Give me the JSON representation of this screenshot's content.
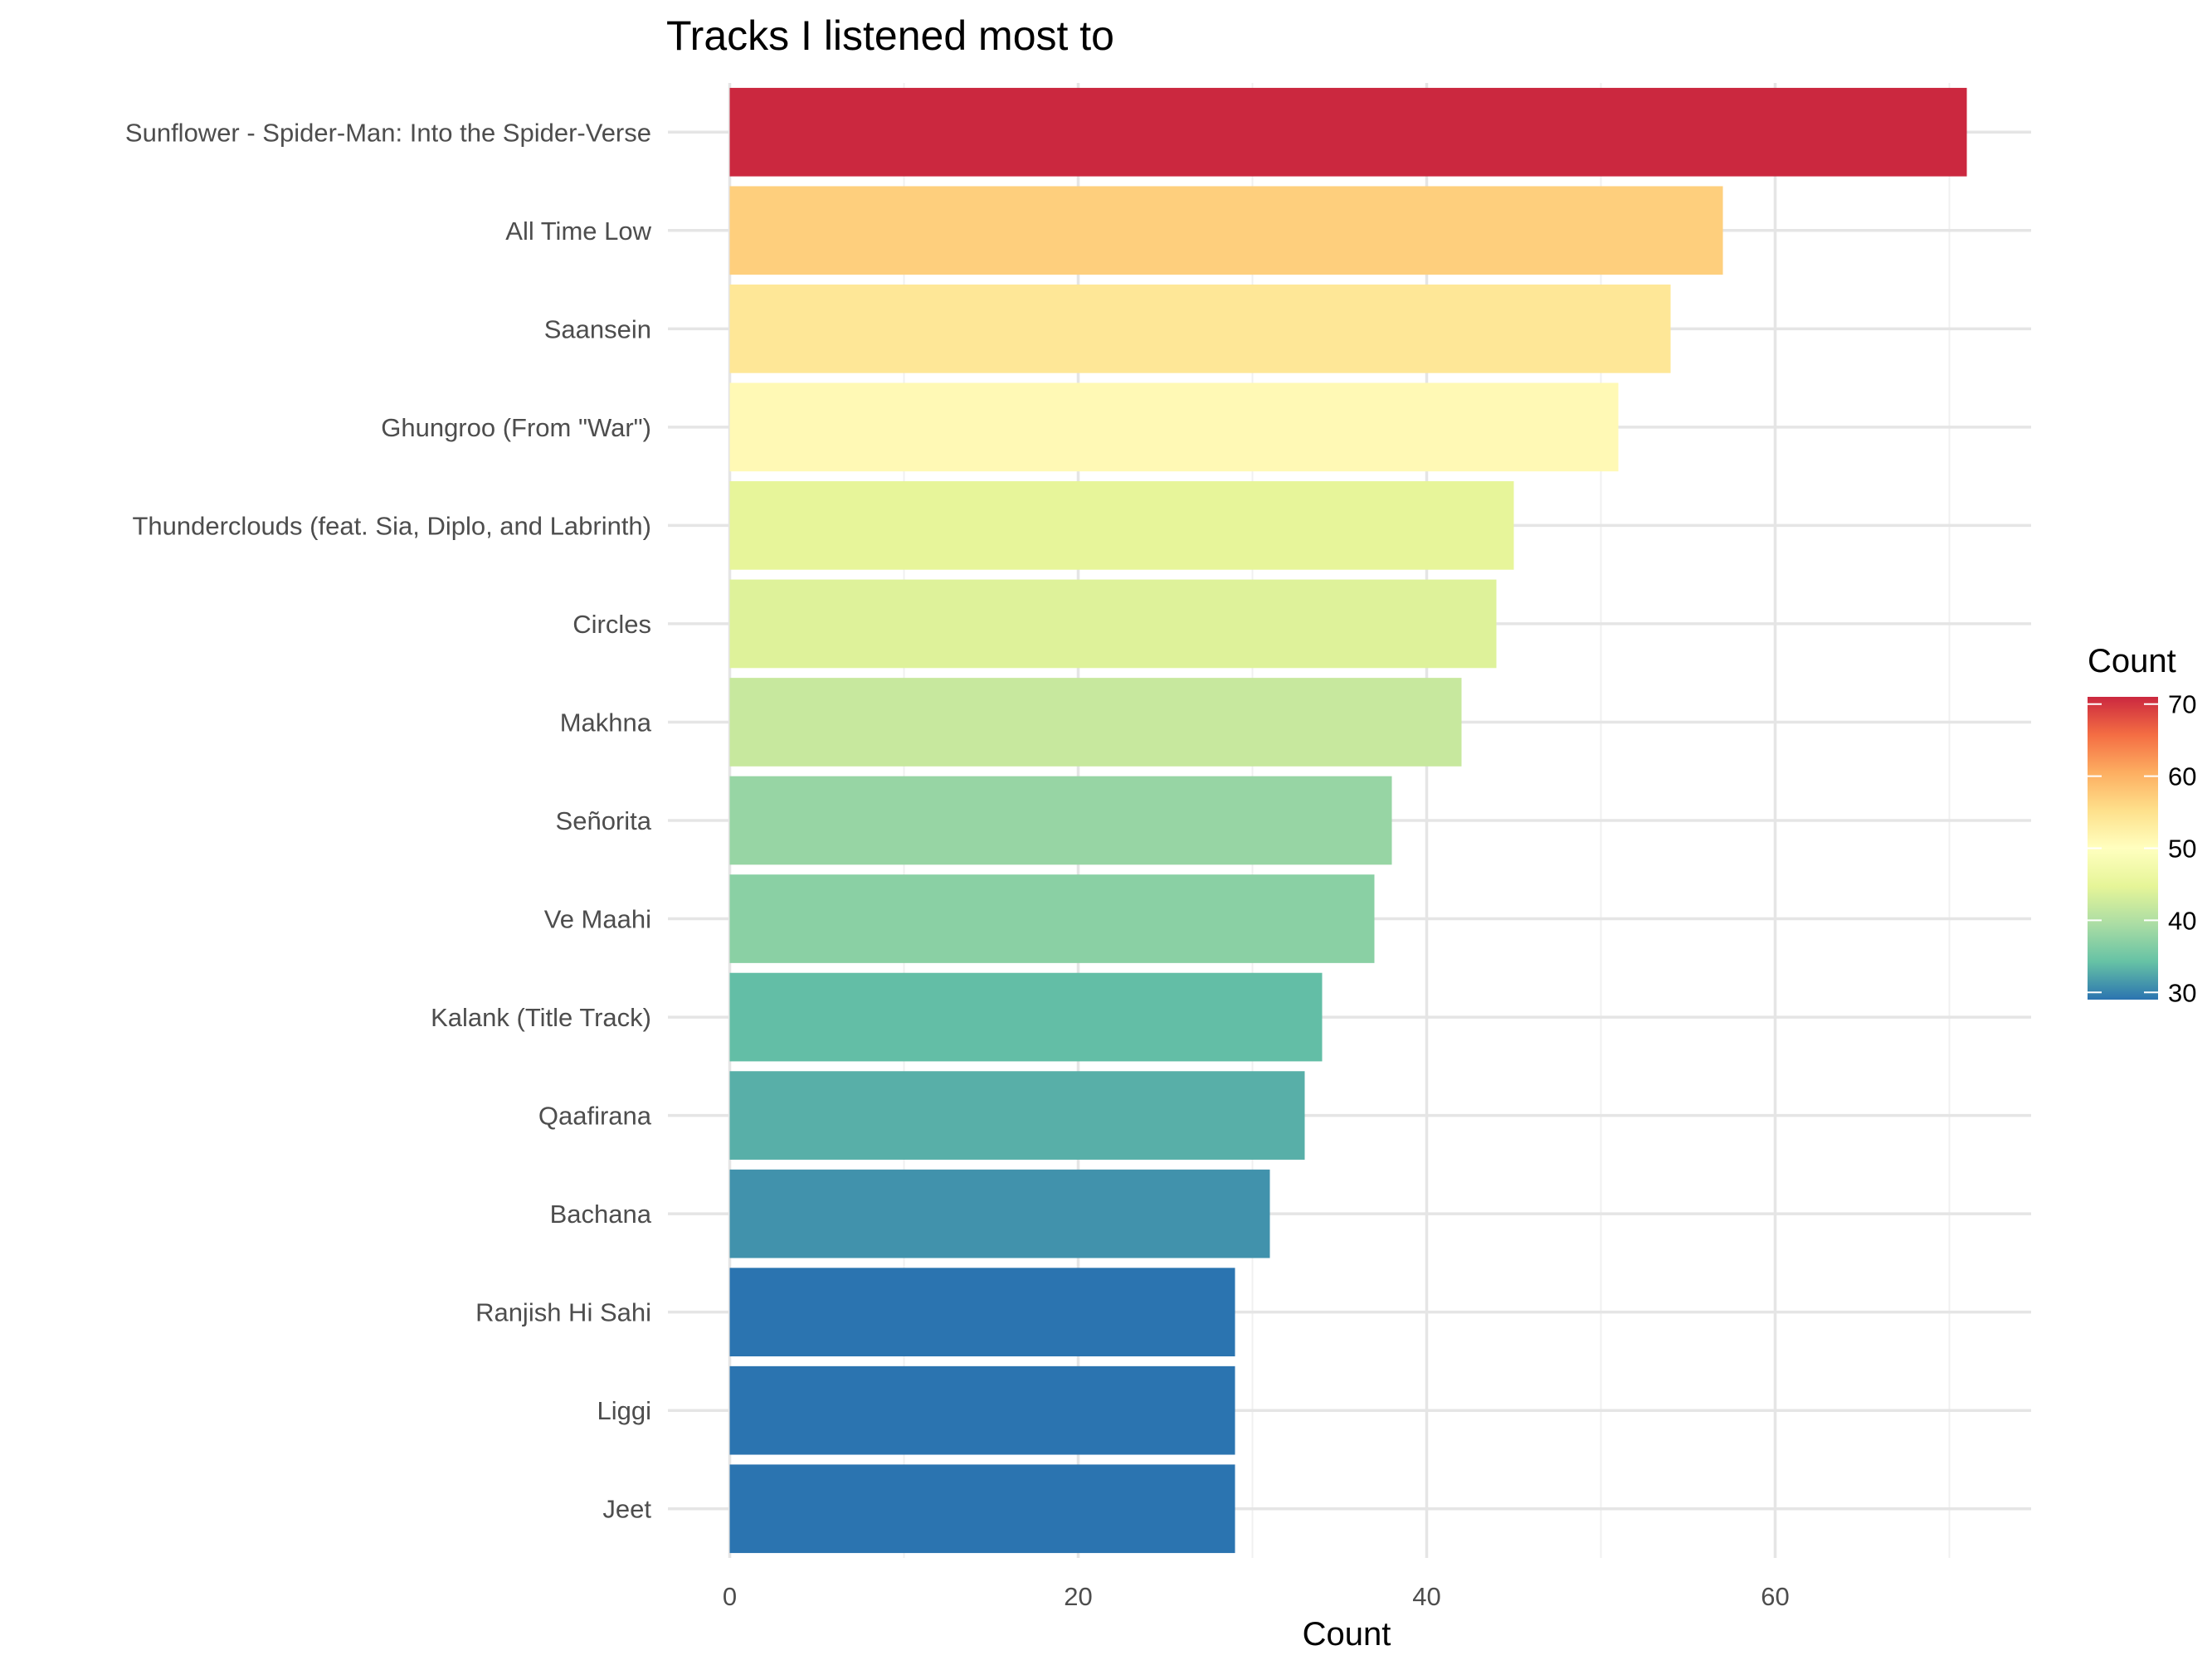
{
  "chart_data": {
    "type": "bar",
    "orientation": "horizontal",
    "title": "Tracks I listened most to",
    "xlabel": "Count",
    "ylabel": "",
    "xlim": [
      0,
      75
    ],
    "x_ticks": [
      0,
      20,
      40,
      60
    ],
    "grid": true,
    "categories": [
      "Sunflower - Spider-Man: Into the Spider-Verse",
      "All Time Low",
      "Saansein",
      "Ghungroo (From \"War\")",
      "Thunderclouds (feat. Sia, Diplo, and Labrinth)",
      "Circles",
      "Makhna",
      "Señorita",
      "Ve Maahi",
      "Kalank (Title Track)",
      "Qaafirana",
      "Bachana",
      "Ranjish Hi Sahi",
      "Liggi",
      "Jeet"
    ],
    "values": [
      71,
      57,
      54,
      51,
      45,
      44,
      42,
      38,
      37,
      34,
      33,
      31,
      29,
      29,
      29
    ],
    "legend": {
      "title": "Count",
      "placement": "right",
      "type": "colorbar",
      "range": [
        29,
        71
      ],
      "ticks": [
        30,
        40,
        50,
        60,
        70
      ],
      "palette": [
        "#2b74b0",
        "#66c2a5",
        "#abdda4",
        "#e6f598",
        "#ffffbf",
        "#fee08b",
        "#fdae61",
        "#f46d43",
        "#cb283f"
      ]
    }
  }
}
